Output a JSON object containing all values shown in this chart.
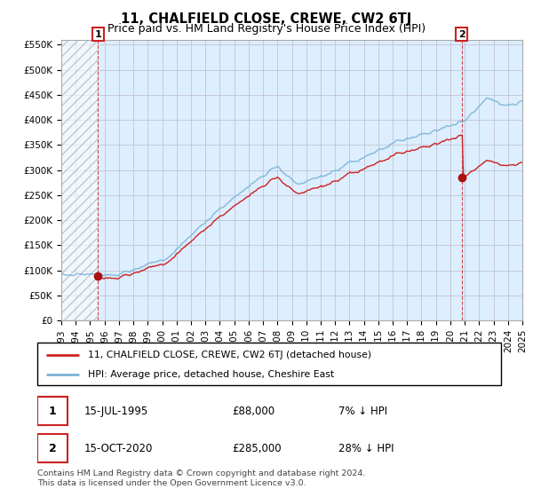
{
  "title": "11, CHALFIELD CLOSE, CREWE, CW2 6TJ",
  "subtitle": "Price paid vs. HM Land Registry's House Price Index (HPI)",
  "ylim": [
    0,
    560000
  ],
  "yticks": [
    0,
    50000,
    100000,
    150000,
    200000,
    250000,
    300000,
    350000,
    400000,
    450000,
    500000,
    550000
  ],
  "ytick_labels": [
    "£0",
    "£50K",
    "£100K",
    "£150K",
    "£200K",
    "£250K",
    "£300K",
    "£350K",
    "£400K",
    "£450K",
    "£500K",
    "£550K"
  ],
  "hpi_color": "#7ab3d4",
  "price_color": "#cc2222",
  "marker_color": "#aa1111",
  "sale1_year": 1995.54,
  "sale1_price": 88000,
  "sale2_year": 2020.79,
  "sale2_price": 285000,
  "legend_label1": "11, CHALFIELD CLOSE, CREWE, CW2 6TJ (detached house)",
  "legend_label2": "HPI: Average price, detached house, Cheshire East",
  "footer": "Contains HM Land Registry data © Crown copyright and database right 2024.\nThis data is licensed under the Open Government Licence v3.0.",
  "background_color": "#ffffff",
  "chart_bg_color": "#ddeeff",
  "grid_color": "#bbbbcc",
  "title_fontsize": 10.5,
  "subtitle_fontsize": 9,
  "tick_fontsize": 7.5,
  "xmin": 1993,
  "xmax": 2025
}
